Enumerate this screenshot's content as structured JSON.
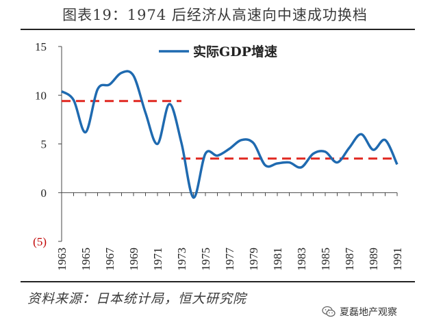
{
  "page": {
    "title": "图表19：1974 后经济从高速向中速成功换档",
    "source": "资料来源：日本统计局，恒大研究院",
    "watermark": "夏磊地产观察"
  },
  "chart_data": {
    "type": "line",
    "title": "图表19：1974 后经济从高速向中速成功换档",
    "xlabel": "",
    "ylabel": "",
    "ylim": [
      -5,
      15
    ],
    "yticks": [
      15,
      10,
      5,
      0,
      -5
    ],
    "ytick_labels": [
      "15",
      "10",
      "5",
      "0",
      "(5)"
    ],
    "xticks": [
      "1963",
      "1965",
      "1967",
      "1969",
      "1971",
      "1973",
      "1975",
      "1977",
      "1979",
      "1981",
      "1983",
      "1985",
      "1987",
      "1989",
      "1991"
    ],
    "xlim": [
      1963,
      1991
    ],
    "legend": {
      "position": "top-center",
      "label": "实际GDP增速"
    },
    "colors": {
      "series": "#1f6ab0",
      "reference": "#e0261f",
      "negative_tick": "#c00000"
    },
    "series": [
      {
        "name": "实际GDP增速",
        "x": [
          1963,
          1964,
          1965,
          1966,
          1967,
          1968,
          1969,
          1970,
          1971,
          1972,
          1973,
          1974,
          1975,
          1976,
          1977,
          1978,
          1979,
          1980,
          1981,
          1982,
          1983,
          1984,
          1985,
          1986,
          1987,
          1988,
          1989,
          1990,
          1991
        ],
        "values": [
          10.4,
          9.5,
          6.2,
          10.6,
          11.1,
          12.3,
          12.0,
          8.2,
          5.0,
          9.1,
          5.1,
          -0.5,
          4.0,
          3.8,
          4.5,
          5.4,
          5.1,
          2.8,
          3.0,
          3.1,
          2.6,
          4.0,
          4.2,
          3.1,
          4.6,
          6.0,
          4.4,
          5.4,
          2.9
        ]
      }
    ],
    "reference_lines": [
      {
        "x": [
          1963,
          1973
        ],
        "value": 9.4
      },
      {
        "x": [
          1973,
          1991
        ],
        "value": 3.5
      }
    ]
  }
}
